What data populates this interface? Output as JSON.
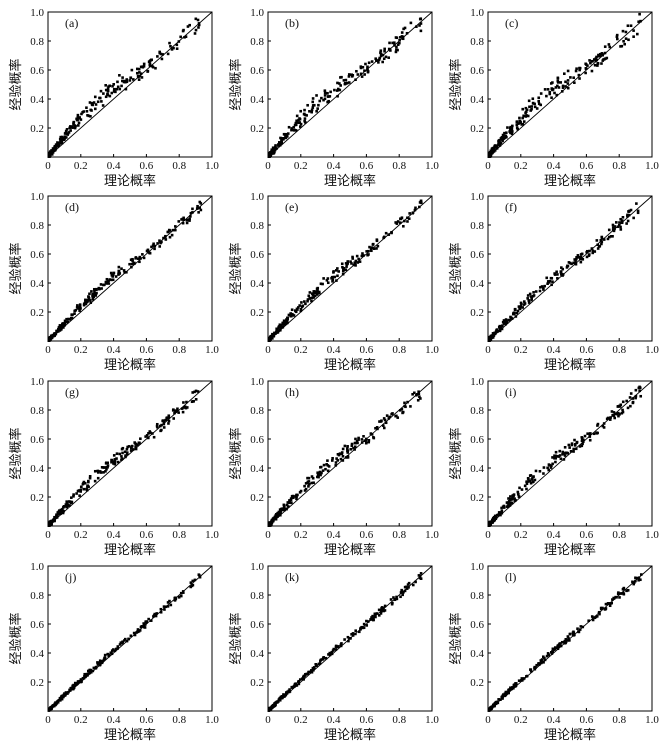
{
  "chart_data": [
    {
      "type": "scatter",
      "panel_label": "(a)",
      "xlabel": "理论概率",
      "ylabel": "经验概率",
      "xlim": [
        0,
        1.0
      ],
      "ylim": [
        0,
        1.0
      ],
      "xticks": [
        "0",
        "0.2",
        "0.4",
        "0.6",
        "0.8",
        "1.0"
      ],
      "yticks": [
        "0.2",
        "0.4",
        "0.6",
        "0.8",
        "1.0"
      ],
      "reference_line": "y = x",
      "scatter_pattern": {
        "bulge": 0.09,
        "spread": 0.045,
        "seed": 11
      }
    },
    {
      "type": "scatter",
      "panel_label": "(b)",
      "xlabel": "理论概率",
      "ylabel": "经验概率",
      "xlim": [
        0,
        1.0
      ],
      "ylim": [
        0,
        1.0
      ],
      "xticks": [
        "0",
        "0.2",
        "0.4",
        "0.6",
        "0.8",
        "1.0"
      ],
      "yticks": [
        "0.2",
        "0.4",
        "0.6",
        "0.8",
        "1.0"
      ],
      "reference_line": "y = x",
      "scatter_pattern": {
        "bulge": 0.08,
        "spread": 0.05,
        "seed": 23
      }
    },
    {
      "type": "scatter",
      "panel_label": "(c)",
      "xlabel": "理论概率",
      "ylabel": "经验概率",
      "xlim": [
        0,
        1.0
      ],
      "ylim": [
        0,
        1.0
      ],
      "xticks": [
        "0",
        "0.2",
        "0.4",
        "0.6",
        "0.8",
        "1.0"
      ],
      "yticks": [
        "0.2",
        "0.4",
        "0.6",
        "0.8",
        "1.0"
      ],
      "reference_line": "y = x",
      "scatter_pattern": {
        "bulge": 0.09,
        "spread": 0.05,
        "seed": 37
      }
    },
    {
      "type": "scatter",
      "panel_label": "(d)",
      "xlabel": "理论概率",
      "ylabel": "经验概率",
      "xlim": [
        0,
        1.0
      ],
      "ylim": [
        0,
        1.0
      ],
      "xticks": [
        "0",
        "0.2",
        "0.4",
        "0.6",
        "0.8",
        "1.0"
      ],
      "yticks": [
        "0.2",
        "0.4",
        "0.6",
        "0.8",
        "1.0"
      ],
      "reference_line": "y = x",
      "scatter_pattern": {
        "bulge": 0.05,
        "spread": 0.03,
        "seed": 41
      }
    },
    {
      "type": "scatter",
      "panel_label": "(e)",
      "xlabel": "理论概率",
      "ylabel": "经验概率",
      "xlim": [
        0,
        1.0
      ],
      "ylim": [
        0,
        1.0
      ],
      "xticks": [
        "0",
        "0.2",
        "0.4",
        "0.6",
        "0.8",
        "1.0"
      ],
      "yticks": [
        "0.2",
        "0.4",
        "0.6",
        "0.8",
        "1.0"
      ],
      "reference_line": "y = x",
      "scatter_pattern": {
        "bulge": 0.06,
        "spread": 0.035,
        "seed": 53
      }
    },
    {
      "type": "scatter",
      "panel_label": "(f)",
      "xlabel": "理论概率",
      "ylabel": "经验概率",
      "xlim": [
        0,
        1.0
      ],
      "ylim": [
        0,
        1.0
      ],
      "xticks": [
        "0",
        "0.2",
        "0.4",
        "0.6",
        "0.8",
        "1.0"
      ],
      "yticks": [
        "0.2",
        "0.4",
        "0.6",
        "0.8",
        "1.0"
      ],
      "reference_line": "y = x",
      "scatter_pattern": {
        "bulge": 0.05,
        "spread": 0.035,
        "seed": 67
      }
    },
    {
      "type": "scatter",
      "panel_label": "(g)",
      "xlabel": "理论概率",
      "ylabel": "经验概率",
      "xlim": [
        0,
        1.0
      ],
      "ylim": [
        0,
        1.0
      ],
      "xticks": [
        "0",
        "0.2",
        "0.4",
        "0.6",
        "0.8",
        "1.0"
      ],
      "yticks": [
        "0.2",
        "0.4",
        "0.6",
        "0.8",
        "1.0"
      ],
      "reference_line": "y = x",
      "scatter_pattern": {
        "bulge": 0.06,
        "spread": 0.035,
        "seed": 71
      }
    },
    {
      "type": "scatter",
      "panel_label": "(h)",
      "xlabel": "理论概率",
      "ylabel": "经验概率",
      "xlim": [
        0,
        1.0
      ],
      "ylim": [
        0,
        1.0
      ],
      "xticks": [
        "0",
        "0.2",
        "0.4",
        "0.6",
        "0.8",
        "1.0"
      ],
      "yticks": [
        "0.2",
        "0.4",
        "0.6",
        "0.8",
        "1.0"
      ],
      "reference_line": "y = x",
      "scatter_pattern": {
        "bulge": 0.06,
        "spread": 0.04,
        "seed": 83
      }
    },
    {
      "type": "scatter",
      "panel_label": "(i)",
      "xlabel": "理论概率",
      "ylabel": "经验概率",
      "xlim": [
        0,
        1.0
      ],
      "ylim": [
        0,
        1.0
      ],
      "xticks": [
        "0",
        "0.2",
        "0.4",
        "0.6",
        "0.8",
        "1.0"
      ],
      "yticks": [
        "0.2",
        "0.4",
        "0.6",
        "0.8",
        "1.0"
      ],
      "reference_line": "y = x",
      "scatter_pattern": {
        "bulge": 0.06,
        "spread": 0.035,
        "seed": 97
      }
    },
    {
      "type": "scatter",
      "panel_label": "(j)",
      "xlabel": "理论概率",
      "ylabel": "经验概率",
      "xlim": [
        0,
        1.0
      ],
      "ylim": [
        0,
        1.0
      ],
      "xticks": [
        "0",
        "0.2",
        "0.4",
        "0.6",
        "0.8",
        "1.0"
      ],
      "yticks": [
        "0.2",
        "0.4",
        "0.6",
        "0.8",
        "1.0"
      ],
      "reference_line": "y = x",
      "scatter_pattern": {
        "bulge": 0.02,
        "spread": 0.02,
        "seed": 101
      }
    },
    {
      "type": "scatter",
      "panel_label": "(k)",
      "xlabel": "理论概率",
      "ylabel": "经验概率",
      "xlim": [
        0,
        1.0
      ],
      "ylim": [
        0,
        1.0
      ],
      "xticks": [
        "0",
        "0.2",
        "0.4",
        "0.6",
        "0.8",
        "1.0"
      ],
      "yticks": [
        "0.2",
        "0.4",
        "0.6",
        "0.8",
        "1.0"
      ],
      "reference_line": "y = x",
      "scatter_pattern": {
        "bulge": 0.02,
        "spread": 0.02,
        "seed": 113
      }
    },
    {
      "type": "scatter",
      "panel_label": "(l)",
      "xlabel": "理论概率",
      "ylabel": "经验概率",
      "xlim": [
        0,
        1.0
      ],
      "ylim": [
        0,
        1.0
      ],
      "xticks": [
        "0",
        "0.2",
        "0.4",
        "0.6",
        "0.8",
        "1.0"
      ],
      "yticks": [
        "0.2",
        "0.4",
        "0.6",
        "0.8",
        "1.0"
      ],
      "reference_line": "y = x",
      "scatter_pattern": {
        "bulge": 0.02,
        "spread": 0.02,
        "seed": 127
      }
    }
  ]
}
